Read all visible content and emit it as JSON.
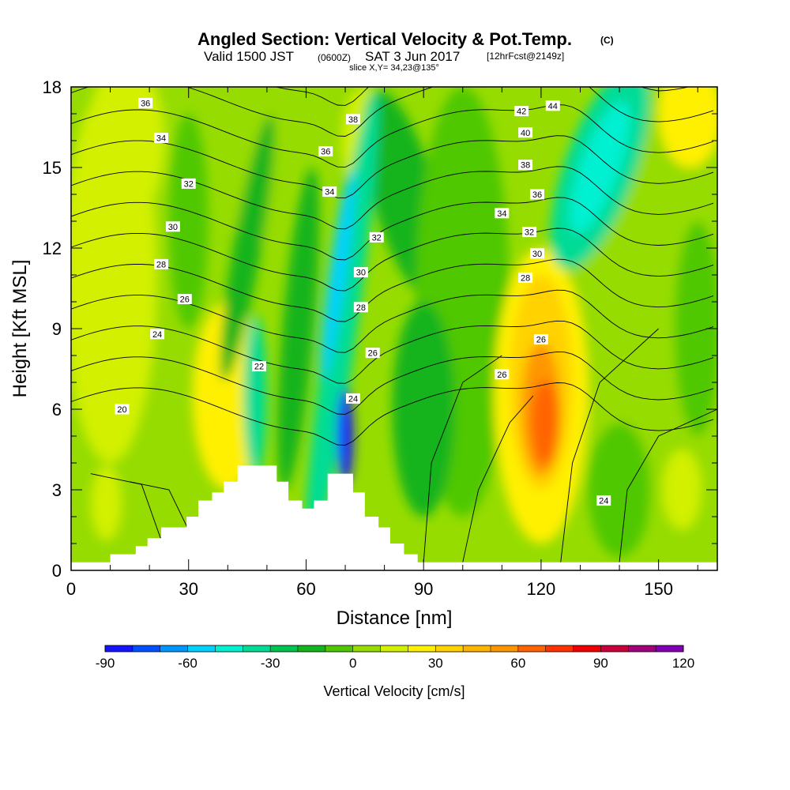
{
  "header": {
    "title_main": "Angled Section: Vertical Velocity & Pot.Temp.",
    "title_unit": "(C)",
    "valid_prefix": "Valid 1500 JST",
    "valid_zulu": "(0600Z)",
    "valid_date": "SAT 3 Jun 2017",
    "forecast": "[12hrFcst@2149z]",
    "slice": "slice X,Y= 34,23@135°"
  },
  "chart_data": {
    "type": "contour",
    "xlabel": "Distance [nm]",
    "ylabel": "Height [Kft MSL]",
    "xlim": [
      0,
      165
    ],
    "ylim": [
      0,
      18
    ],
    "x_ticks": [
      0,
      30,
      60,
      90,
      120,
      150
    ],
    "y_ticks": [
      0,
      3,
      6,
      9,
      12,
      15,
      18
    ],
    "x_tick_labels": [
      "0",
      "30",
      "60",
      "90",
      "120",
      "150"
    ],
    "y_tick_labels": [
      "0",
      "3",
      "6",
      "9",
      "12",
      "15",
      "18"
    ],
    "colorbar": {
      "title": "Vertical Velocity [cm/s]",
      "min": -90,
      "max": 120,
      "step": 10,
      "tick_values": [
        -90,
        -60,
        -30,
        0,
        30,
        60,
        90,
        120
      ],
      "tick_labels": [
        "-90",
        "-60",
        "-30",
        "0",
        "30",
        "60",
        "90",
        "120"
      ],
      "colors": [
        "#1414ff",
        "#0050ff",
        "#0096ff",
        "#00d2ff",
        "#00f0d2",
        "#00dc96",
        "#00c350",
        "#14b41e",
        "#50c800",
        "#96dc00",
        "#d2f000",
        "#fff000",
        "#ffd200",
        "#ffb400",
        "#ff9600",
        "#ff6400",
        "#ff3200",
        "#f00000",
        "#c8003c",
        "#a00078",
        "#8200b4"
      ]
    },
    "terrain_profile": [
      [
        0,
        0.3
      ],
      [
        10,
        0.3
      ],
      [
        10,
        0.6
      ],
      [
        16.5,
        0.6
      ],
      [
        16.5,
        0.9
      ],
      [
        19.5,
        0.9
      ],
      [
        19.5,
        1.2
      ],
      [
        23,
        1.2
      ],
      [
        23,
        1.6
      ],
      [
        29.5,
        1.6
      ],
      [
        29.5,
        2.0
      ],
      [
        32.5,
        2.0
      ],
      [
        32.5,
        2.6
      ],
      [
        36,
        2.6
      ],
      [
        36,
        2.9
      ],
      [
        39,
        2.9
      ],
      [
        39,
        3.3
      ],
      [
        42.5,
        3.3
      ],
      [
        42.5,
        3.9
      ],
      [
        52.5,
        3.9
      ],
      [
        52.5,
        3.3
      ],
      [
        55.5,
        3.3
      ],
      [
        55.5,
        2.6
      ],
      [
        59,
        2.6
      ],
      [
        59,
        2.3
      ],
      [
        62,
        2.3
      ],
      [
        62,
        2.6
      ],
      [
        65.5,
        2.6
      ],
      [
        65.5,
        3.6
      ],
      [
        72,
        3.6
      ],
      [
        72,
        2.9
      ],
      [
        75,
        2.9
      ],
      [
        75,
        2.0
      ],
      [
        78.5,
        2.0
      ],
      [
        78.5,
        1.6
      ],
      [
        81.5,
        1.6
      ],
      [
        81.5,
        1.0
      ],
      [
        85,
        1.0
      ],
      [
        85,
        0.6
      ],
      [
        88.5,
        0.6
      ],
      [
        88.5,
        0.3
      ],
      [
        165,
        0.3
      ]
    ],
    "theta_contour_levels": [
      20,
      22,
      24,
      26,
      28,
      30,
      32,
      34,
      36,
      38,
      40,
      42,
      44
    ],
    "contour_labels": [
      {
        "value": "36",
        "x": 19,
        "y": 17.4
      },
      {
        "value": "34",
        "x": 23,
        "y": 16.1
      },
      {
        "value": "32",
        "x": 30,
        "y": 14.4
      },
      {
        "value": "30",
        "x": 26,
        "y": 12.8
      },
      {
        "value": "28",
        "x": 23,
        "y": 11.4
      },
      {
        "value": "26",
        "x": 29,
        "y": 10.1
      },
      {
        "value": "24",
        "x": 22,
        "y": 8.8
      },
      {
        "value": "20",
        "x": 13,
        "y": 6.0
      },
      {
        "value": "38",
        "x": 72,
        "y": 16.8
      },
      {
        "value": "36",
        "x": 65,
        "y": 15.6
      },
      {
        "value": "34",
        "x": 66,
        "y": 14.1
      },
      {
        "value": "32",
        "x": 78,
        "y": 12.4
      },
      {
        "value": "30",
        "x": 74,
        "y": 11.1
      },
      {
        "value": "28",
        "x": 74,
        "y": 9.8
      },
      {
        "value": "26",
        "x": 77,
        "y": 8.1
      },
      {
        "value": "24",
        "x": 72,
        "y": 6.4
      },
      {
        "value": "22",
        "x": 48,
        "y": 7.6
      },
      {
        "value": "42",
        "x": 115,
        "y": 17.1
      },
      {
        "value": "44",
        "x": 123,
        "y": 17.3
      },
      {
        "value": "40",
        "x": 116,
        "y": 16.3
      },
      {
        "value": "38",
        "x": 116,
        "y": 15.1
      },
      {
        "value": "36",
        "x": 119,
        "y": 14.0
      },
      {
        "value": "34",
        "x": 110,
        "y": 13.3
      },
      {
        "value": "32",
        "x": 117,
        "y": 12.6
      },
      {
        "value": "30",
        "x": 119,
        "y": 11.8
      },
      {
        "value": "28",
        "x": 116,
        "y": 10.9
      },
      {
        "value": "26",
        "x": 120,
        "y": 8.6
      },
      {
        "value": "26",
        "x": 110,
        "y": 7.3
      },
      {
        "value": "24",
        "x": 136,
        "y": 2.6
      }
    ],
    "vertical_velocity_features": [
      {
        "x": 70,
        "y": 5.0,
        "value": -90
      },
      {
        "x": 68,
        "y": 11.0,
        "value": -60
      },
      {
        "x": 135,
        "y": 15.0,
        "value": -50
      },
      {
        "x": 47,
        "y": 6.5,
        "value": -40
      },
      {
        "x": 120,
        "y": 6.0,
        "value": 60
      },
      {
        "x": 120,
        "y": 8.5,
        "value": 30
      },
      {
        "x": 42,
        "y": 6.5,
        "value": 20
      },
      {
        "x": 9,
        "y": 2.6,
        "value": 10
      },
      {
        "x": 158,
        "y": 17.0,
        "value": 20
      },
      {
        "x": 78,
        "y": 17.0,
        "value": 10
      }
    ]
  }
}
